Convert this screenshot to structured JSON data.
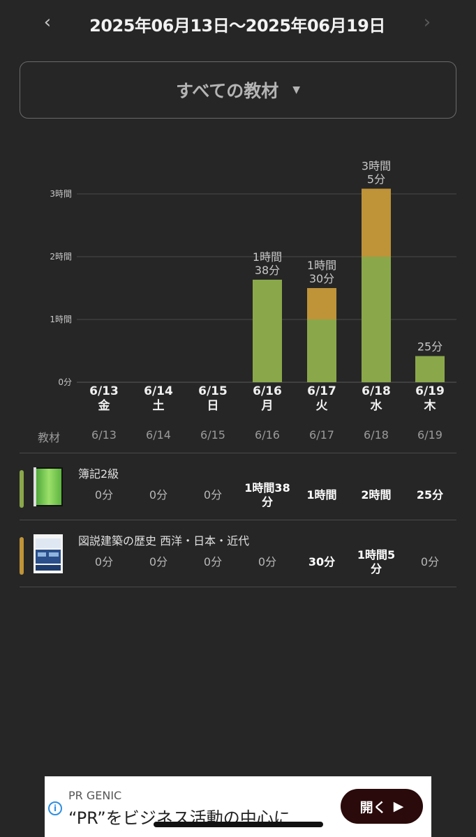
{
  "header": {
    "prev_icon": "chevron-left-icon",
    "next_icon": "chevron-right-icon",
    "date_range": "2025年06月13日〜2025年06月19日"
  },
  "material_select": {
    "label": "すべての教材",
    "caret_icon": "caret-down-icon"
  },
  "colors": {
    "boki": "#8aa84a",
    "arch": "#bf9338",
    "background": "#262626"
  },
  "chart_data": {
    "type": "bar",
    "stacked": true,
    "unit": "minutes",
    "y_ticks": [
      {
        "value": 0,
        "label": "0分"
      },
      {
        "value": 60,
        "label": "1時間"
      },
      {
        "value": 120,
        "label": "2時間"
      },
      {
        "value": 180,
        "label": "3時間"
      }
    ],
    "ylim": [
      0,
      180
    ],
    "grid": true,
    "categories": [
      {
        "date": "6/13",
        "weekday": "金"
      },
      {
        "date": "6/14",
        "weekday": "土"
      },
      {
        "date": "6/15",
        "weekday": "日"
      },
      {
        "date": "6/16",
        "weekday": "月"
      },
      {
        "date": "6/17",
        "weekday": "火"
      },
      {
        "date": "6/18",
        "weekday": "水"
      },
      {
        "date": "6/19",
        "weekday": "木"
      }
    ],
    "series": [
      {
        "name": "簿記2級",
        "color": "#8aa84a",
        "values": [
          0,
          0,
          0,
          98,
          60,
          120,
          25
        ]
      },
      {
        "name": "図説建築の歴史 西洋・日本・近代",
        "color": "#bf9338",
        "values": [
          0,
          0,
          0,
          0,
          30,
          65,
          0
        ]
      }
    ],
    "total_labels": [
      [],
      [],
      [],
      [
        "1時間",
        "38分"
      ],
      [
        "1時間",
        "30分"
      ],
      [
        "3時間",
        "5分"
      ],
      [
        "25分"
      ]
    ]
  },
  "table": {
    "header_label": "教材",
    "dates": [
      "6/13",
      "6/14",
      "6/15",
      "6/16",
      "6/17",
      "6/18",
      "6/19"
    ],
    "rows": [
      {
        "title": "簿記2級",
        "color": "#8aa84a",
        "cells": [
          {
            "lines": [
              "0分"
            ],
            "bold": false
          },
          {
            "lines": [
              "0分"
            ],
            "bold": false
          },
          {
            "lines": [
              "0分"
            ],
            "bold": false
          },
          {
            "lines": [
              "1時間38",
              "分"
            ],
            "bold": true
          },
          {
            "lines": [
              "1時間"
            ],
            "bold": true
          },
          {
            "lines": [
              "2時間"
            ],
            "bold": true
          },
          {
            "lines": [
              "25分"
            ],
            "bold": true
          }
        ]
      },
      {
        "title": "図説建築の歴史 西洋・日本・近代",
        "color": "#bf9338",
        "cells": [
          {
            "lines": [
              "0分"
            ],
            "bold": false
          },
          {
            "lines": [
              "0分"
            ],
            "bold": false
          },
          {
            "lines": [
              "0分"
            ],
            "bold": false
          },
          {
            "lines": [
              "0分"
            ],
            "bold": false
          },
          {
            "lines": [
              "30分"
            ],
            "bold": true
          },
          {
            "lines": [
              "1時間5",
              "分"
            ],
            "bold": true
          },
          {
            "lines": [
              "0分"
            ],
            "bold": false
          }
        ]
      }
    ]
  },
  "ad": {
    "info_icon": "info-icon",
    "brand": "PR GENIC",
    "headline": "“PR”をビジネス活動の中心に",
    "button_label": "開く",
    "button_icon": "play-triangle-icon"
  }
}
